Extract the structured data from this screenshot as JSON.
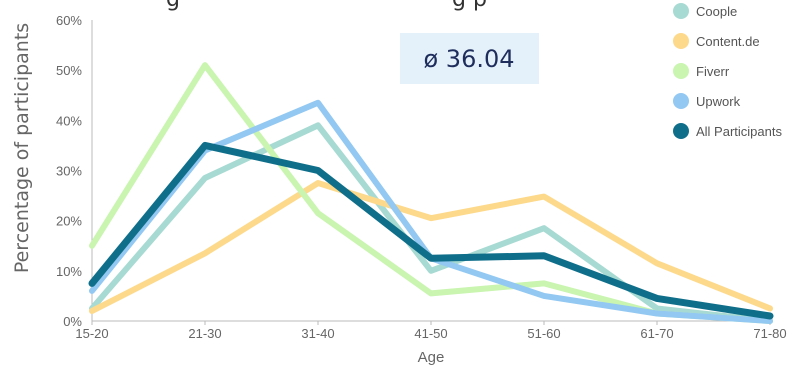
{
  "chart_data": {
    "type": "line",
    "title": "g",
    "title_right": "g p",
    "xlabel": "Age",
    "ylabel": "Percentage of participants",
    "categories": [
      "15-20",
      "21-30",
      "31-40",
      "41-50",
      "51-60",
      "61-70",
      "71-80"
    ],
    "ylim": [
      0,
      60
    ],
    "yticks": [
      "0%",
      "10%",
      "20%",
      "30%",
      "40%",
      "50%",
      "60%"
    ],
    "grid": false,
    "legend_position": "top-right",
    "annotation": "ø 36.04",
    "series": [
      {
        "name": "Coople",
        "color": "#a7dad2",
        "values": [
          2.5,
          28.5,
          39,
          10,
          18.5,
          2.5,
          0
        ]
      },
      {
        "name": "Content.de",
        "color": "#fdd98b",
        "values": [
          2,
          13.5,
          27.5,
          20.5,
          24.8,
          11.5,
          2.5
        ]
      },
      {
        "name": "Fiverr",
        "color": "#c9f5b0",
        "values": [
          15,
          51,
          21.5,
          5.5,
          7.5,
          1.5,
          0
        ]
      },
      {
        "name": "Upwork",
        "color": "#92c8f2",
        "values": [
          6,
          34,
          43.5,
          12.5,
          5,
          1.5,
          0
        ]
      },
      {
        "name": "All Participants",
        "color": "#0f6f8a",
        "values": [
          7.5,
          35,
          30,
          12.5,
          13,
          4.5,
          1
        ]
      }
    ]
  }
}
